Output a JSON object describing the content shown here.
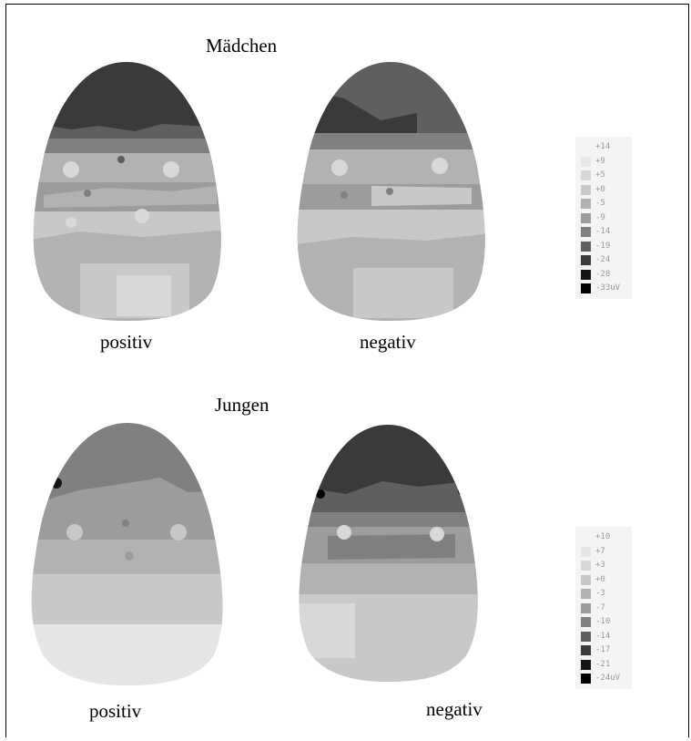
{
  "girls": {
    "title": "Mädchen",
    "left_caption": "positiv",
    "right_caption": "negativ",
    "legend": [
      {
        "label": "+14",
        "color": "#f4f4f4"
      },
      {
        "label": "+9",
        "color": "#e6e6e6"
      },
      {
        "label": "+5",
        "color": "#d8d8d8"
      },
      {
        "label": "+0",
        "color": "#c8c8c8"
      },
      {
        "label": "-5",
        "color": "#b2b2b2"
      },
      {
        "label": "-9",
        "color": "#9c9c9c"
      },
      {
        "label": "-14",
        "color": "#808080"
      },
      {
        "label": "-19",
        "color": "#5f5f5f"
      },
      {
        "label": "-24",
        "color": "#3a3a3a"
      },
      {
        "label": "-28",
        "color": "#151515"
      },
      {
        "label": "-33uV",
        "color": "#000000"
      }
    ]
  },
  "boys": {
    "title": "Jungen",
    "left_caption": "positiv",
    "right_caption": "negativ",
    "legend": [
      {
        "label": "+10",
        "color": "#f4f4f4"
      },
      {
        "label": "+7",
        "color": "#e6e6e6"
      },
      {
        "label": "+3",
        "color": "#d8d8d8"
      },
      {
        "label": "+0",
        "color": "#c8c8c8"
      },
      {
        "label": "-3",
        "color": "#b2b2b2"
      },
      {
        "label": "-7",
        "color": "#9c9c9c"
      },
      {
        "label": "-10",
        "color": "#808080"
      },
      {
        "label": "-14",
        "color": "#5f5f5f"
      },
      {
        "label": "-17",
        "color": "#3a3a3a"
      },
      {
        "label": "-21",
        "color": "#151515"
      },
      {
        "label": "-24uV",
        "color": "#000000"
      }
    ]
  }
}
